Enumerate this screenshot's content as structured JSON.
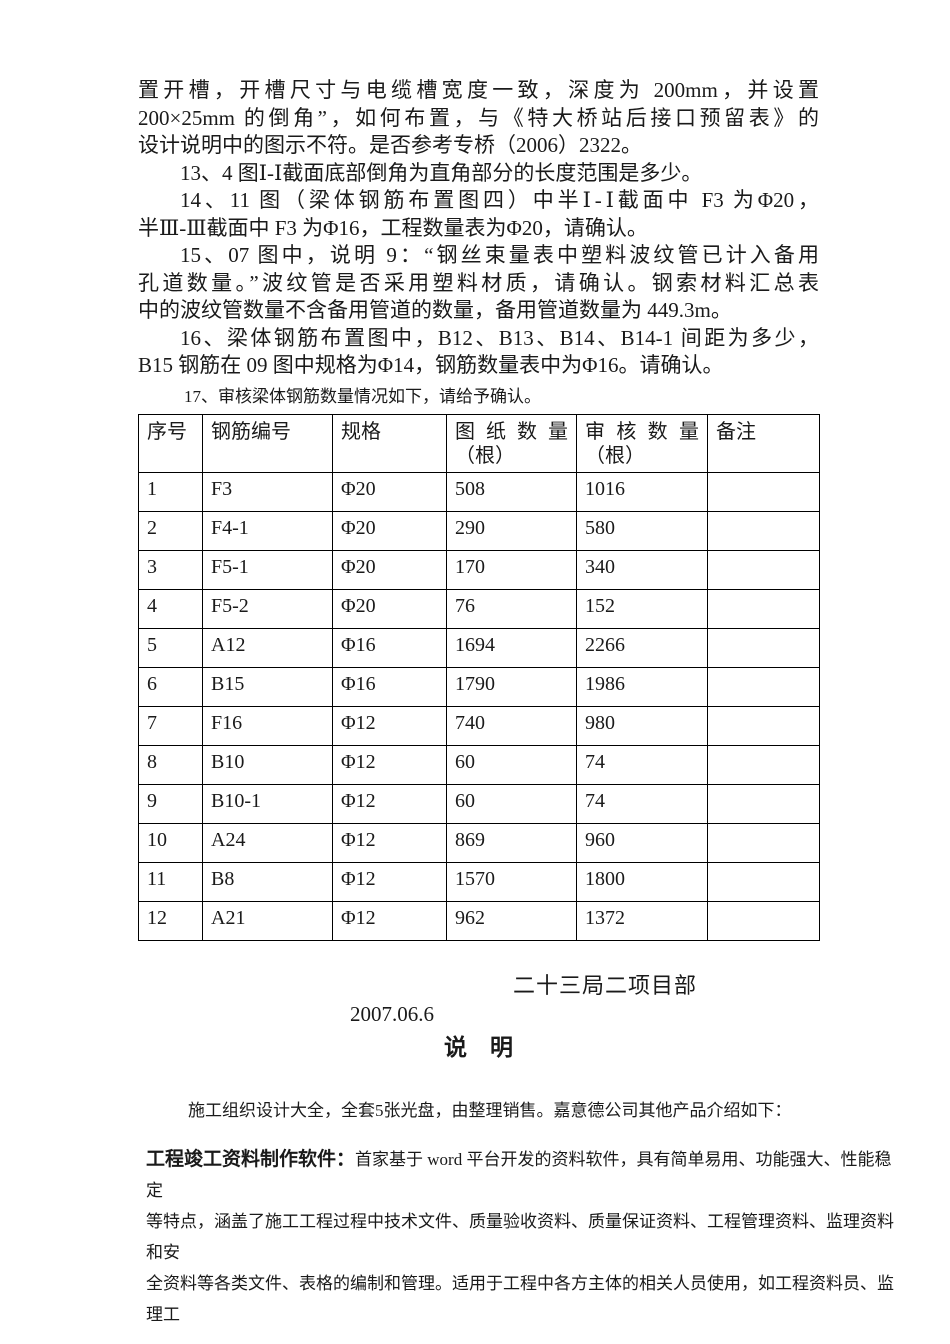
{
  "colors": {
    "background": "#ffffff",
    "text": "#1a1a1a",
    "table_border": "#000000"
  },
  "paragraphs": [
    {
      "lines": [
        "置开槽，开槽尺寸与电缆槽宽度一致，深度为 200mm，并设置",
        "200×25mm 的倒角”，如何布置，与《特大桥站后接口预留表》的",
        "设计说明中的图示不符。是否参考专桥（2006）2322。"
      ]
    },
    {
      "lines": [
        "13、4 图Ⅰ-Ⅰ截面底部倒角为直角部分的长度范围是多少。"
      ]
    },
    {
      "lines": [
        "14、11 图（梁体钢筋布置图四）中半Ⅰ-Ⅰ截面中 F3 为Φ20，",
        "半Ⅲ-Ⅲ截面中 F3 为Φ16，工程数量表为Φ20，请确认。"
      ]
    },
    {
      "lines": [
        "15、07 图中，说明 9：“钢丝束量表中塑料波纹管已计入备用",
        "孔道数量。”波纹管是否采用塑料材质，请确认。钢索材料汇总表",
        "中的波纹管数量不含备用管道的数量，备用管道数量为 449.3m。"
      ]
    },
    {
      "lines": [
        "16、梁体钢筋布置图中，B12、B13、B14、B14-1 间距为多少，",
        "B15 钢筋在 09 图中规格为Φ14，钢筋数量表中为Φ16。请确认。"
      ]
    }
  ],
  "table_intro": "17、审核梁体钢筋数量情况如下，请给予确认。",
  "table": {
    "headers": [
      {
        "line1": "序号",
        "line2": ""
      },
      {
        "line1": "钢筋编号",
        "line2": ""
      },
      {
        "line1": "规格",
        "line2": ""
      },
      {
        "line1": "图纸数量",
        "line2": "（根）"
      },
      {
        "line1": "审核数量",
        "line2": "（根）"
      },
      {
        "line1": "备注",
        "line2": ""
      }
    ],
    "rows": [
      [
        "1",
        "F3",
        "Φ20",
        "508",
        "1016",
        ""
      ],
      [
        "2",
        "F4-1",
        "Φ20",
        "290",
        "580",
        ""
      ],
      [
        "3",
        "F5-1",
        "Φ20",
        "170",
        "340",
        ""
      ],
      [
        "4",
        "F5-2",
        "Φ20",
        "76",
        "152",
        ""
      ],
      [
        "5",
        "A12",
        "Φ16",
        "1694",
        "2266",
        ""
      ],
      [
        "6",
        "B15",
        "Φ16",
        "1790",
        "1986",
        ""
      ],
      [
        "7",
        "F16",
        "Φ12",
        "740",
        "980",
        ""
      ],
      [
        "8",
        "B10",
        "Φ12",
        "60",
        "74",
        ""
      ],
      [
        "9",
        "B10-1",
        "Φ12",
        "60",
        "74",
        ""
      ],
      [
        "10",
        "A24",
        "Φ12",
        "869",
        "960",
        ""
      ],
      [
        "11",
        "B8",
        "Φ12",
        "1570",
        "1800",
        ""
      ],
      [
        "12",
        "A21",
        "Φ12",
        "962",
        "1372",
        ""
      ]
    ]
  },
  "signature": {
    "org": "二十三局二项目部",
    "date": "2007.06.6",
    "heading": "说　明"
  },
  "promo": {
    "intro": "施工组织设计大全，全套5张光盘，由整理销售。嘉意德公司其他产品介绍如下：",
    "product_label": "工程竣工资料制作软件：",
    "lines": [
      "首家基于 word 平台开发的资料软件，具有简单易用、功能强大、性能稳定",
      "等特点，涵盖了施工工程过程中技术文件、质量验收资料、质量保证资料、工程管理资料、监理资料和安",
      "全资料等各类文件、表格的编制和管理。适用于工程中各方主体的相关人员使用，如工程资料员、监理工"
    ]
  }
}
